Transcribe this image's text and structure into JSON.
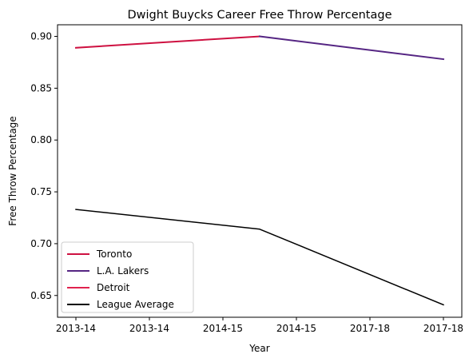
{
  "chart_data": {
    "type": "line",
    "title": "Dwight Buycks Career Free Throw Percentage",
    "xlabel": "Year",
    "ylabel": "Free Throw Percentage",
    "x": [
      0,
      1,
      2
    ],
    "xticks": [
      0,
      0.4,
      0.8,
      1.2,
      1.6,
      2.0
    ],
    "xtick_labels": [
      "2013-14",
      "2013-14",
      "2014-15",
      "2014-15",
      "2017-18",
      "2017-18"
    ],
    "xlim": [
      -0.1,
      2.1
    ],
    "ylim": [
      0.629,
      0.9112
    ],
    "yticks": [
      0.65,
      0.7,
      0.75,
      0.8,
      0.85,
      0.9
    ],
    "ytick_labels": [
      "0.65",
      "0.70",
      "0.75",
      "0.80",
      "0.85",
      "0.90"
    ],
    "grid": false,
    "legend_position": "lower-left",
    "series": [
      {
        "name": "Toronto",
        "color": "#ce1141",
        "width": 2,
        "points": [
          [
            0,
            0.889
          ],
          [
            1,
            0.9
          ]
        ]
      },
      {
        "name": "L.A. Lakers",
        "color": "#552583",
        "width": 2,
        "points": [
          [
            1,
            0.9
          ],
          [
            2,
            0.878
          ]
        ]
      },
      {
        "name": "Detroit",
        "color": "#e0224e",
        "width": 2,
        "points": []
      },
      {
        "name": "League Average",
        "color": "#000000",
        "width": 1.5,
        "points": [
          [
            0,
            0.733
          ],
          [
            1,
            0.714
          ],
          [
            2,
            0.641
          ]
        ]
      }
    ]
  }
}
